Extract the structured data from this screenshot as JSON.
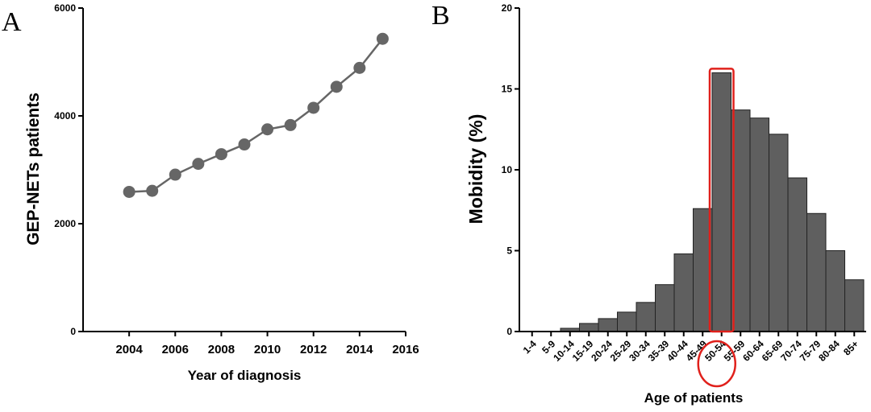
{
  "panels": {
    "a": "A",
    "b": "B"
  },
  "chart_data": [
    {
      "type": "line",
      "xlabel": "Year of diagnosis",
      "ylabel": "GEP-NETs patients",
      "xlim": [
        2002,
        2016
      ],
      "ylim": [
        0,
        6000
      ],
      "x_ticks": [
        "2004",
        "2006",
        "2008",
        "2010",
        "2012",
        "2014",
        "2016"
      ],
      "y_ticks": [
        "0",
        "2000",
        "4000",
        "6000"
      ],
      "x": [
        2004,
        2005,
        2006,
        2007,
        2008,
        2009,
        2010,
        2011,
        2012,
        2013,
        2014,
        2015
      ],
      "series": [
        {
          "values": [
            2590,
            2610,
            2910,
            3110,
            3290,
            3470,
            3750,
            3830,
            4150,
            4540,
            4890,
            5430
          ],
          "color": "#666666"
        }
      ],
      "grid": false
    },
    {
      "type": "bar",
      "xlabel": "Age of patients",
      "ylabel": "Mobidity (%)",
      "ylim": [
        0,
        20
      ],
      "y_ticks": [
        "0",
        "5",
        "10",
        "15",
        "20"
      ],
      "categories": [
        "1-4",
        "5-9",
        "10-14",
        "15-19",
        "20-24",
        "25-29",
        "30-34",
        "35-39",
        "40-44",
        "45-49",
        "50-54",
        "55-59",
        "60-64",
        "65-69",
        "70-74",
        "75-79",
        "80-84",
        "85+"
      ],
      "values": [
        0,
        0,
        0.2,
        0.5,
        0.8,
        1.2,
        1.8,
        2.9,
        4.8,
        7.6,
        16.0,
        13.7,
        13.2,
        12.2,
        9.5,
        7.3,
        5.0,
        3.2
      ],
      "bar_color": "#5f5f5f",
      "highlight_category": "50-54",
      "highlight_color": "#e0201b",
      "grid": false
    }
  ]
}
